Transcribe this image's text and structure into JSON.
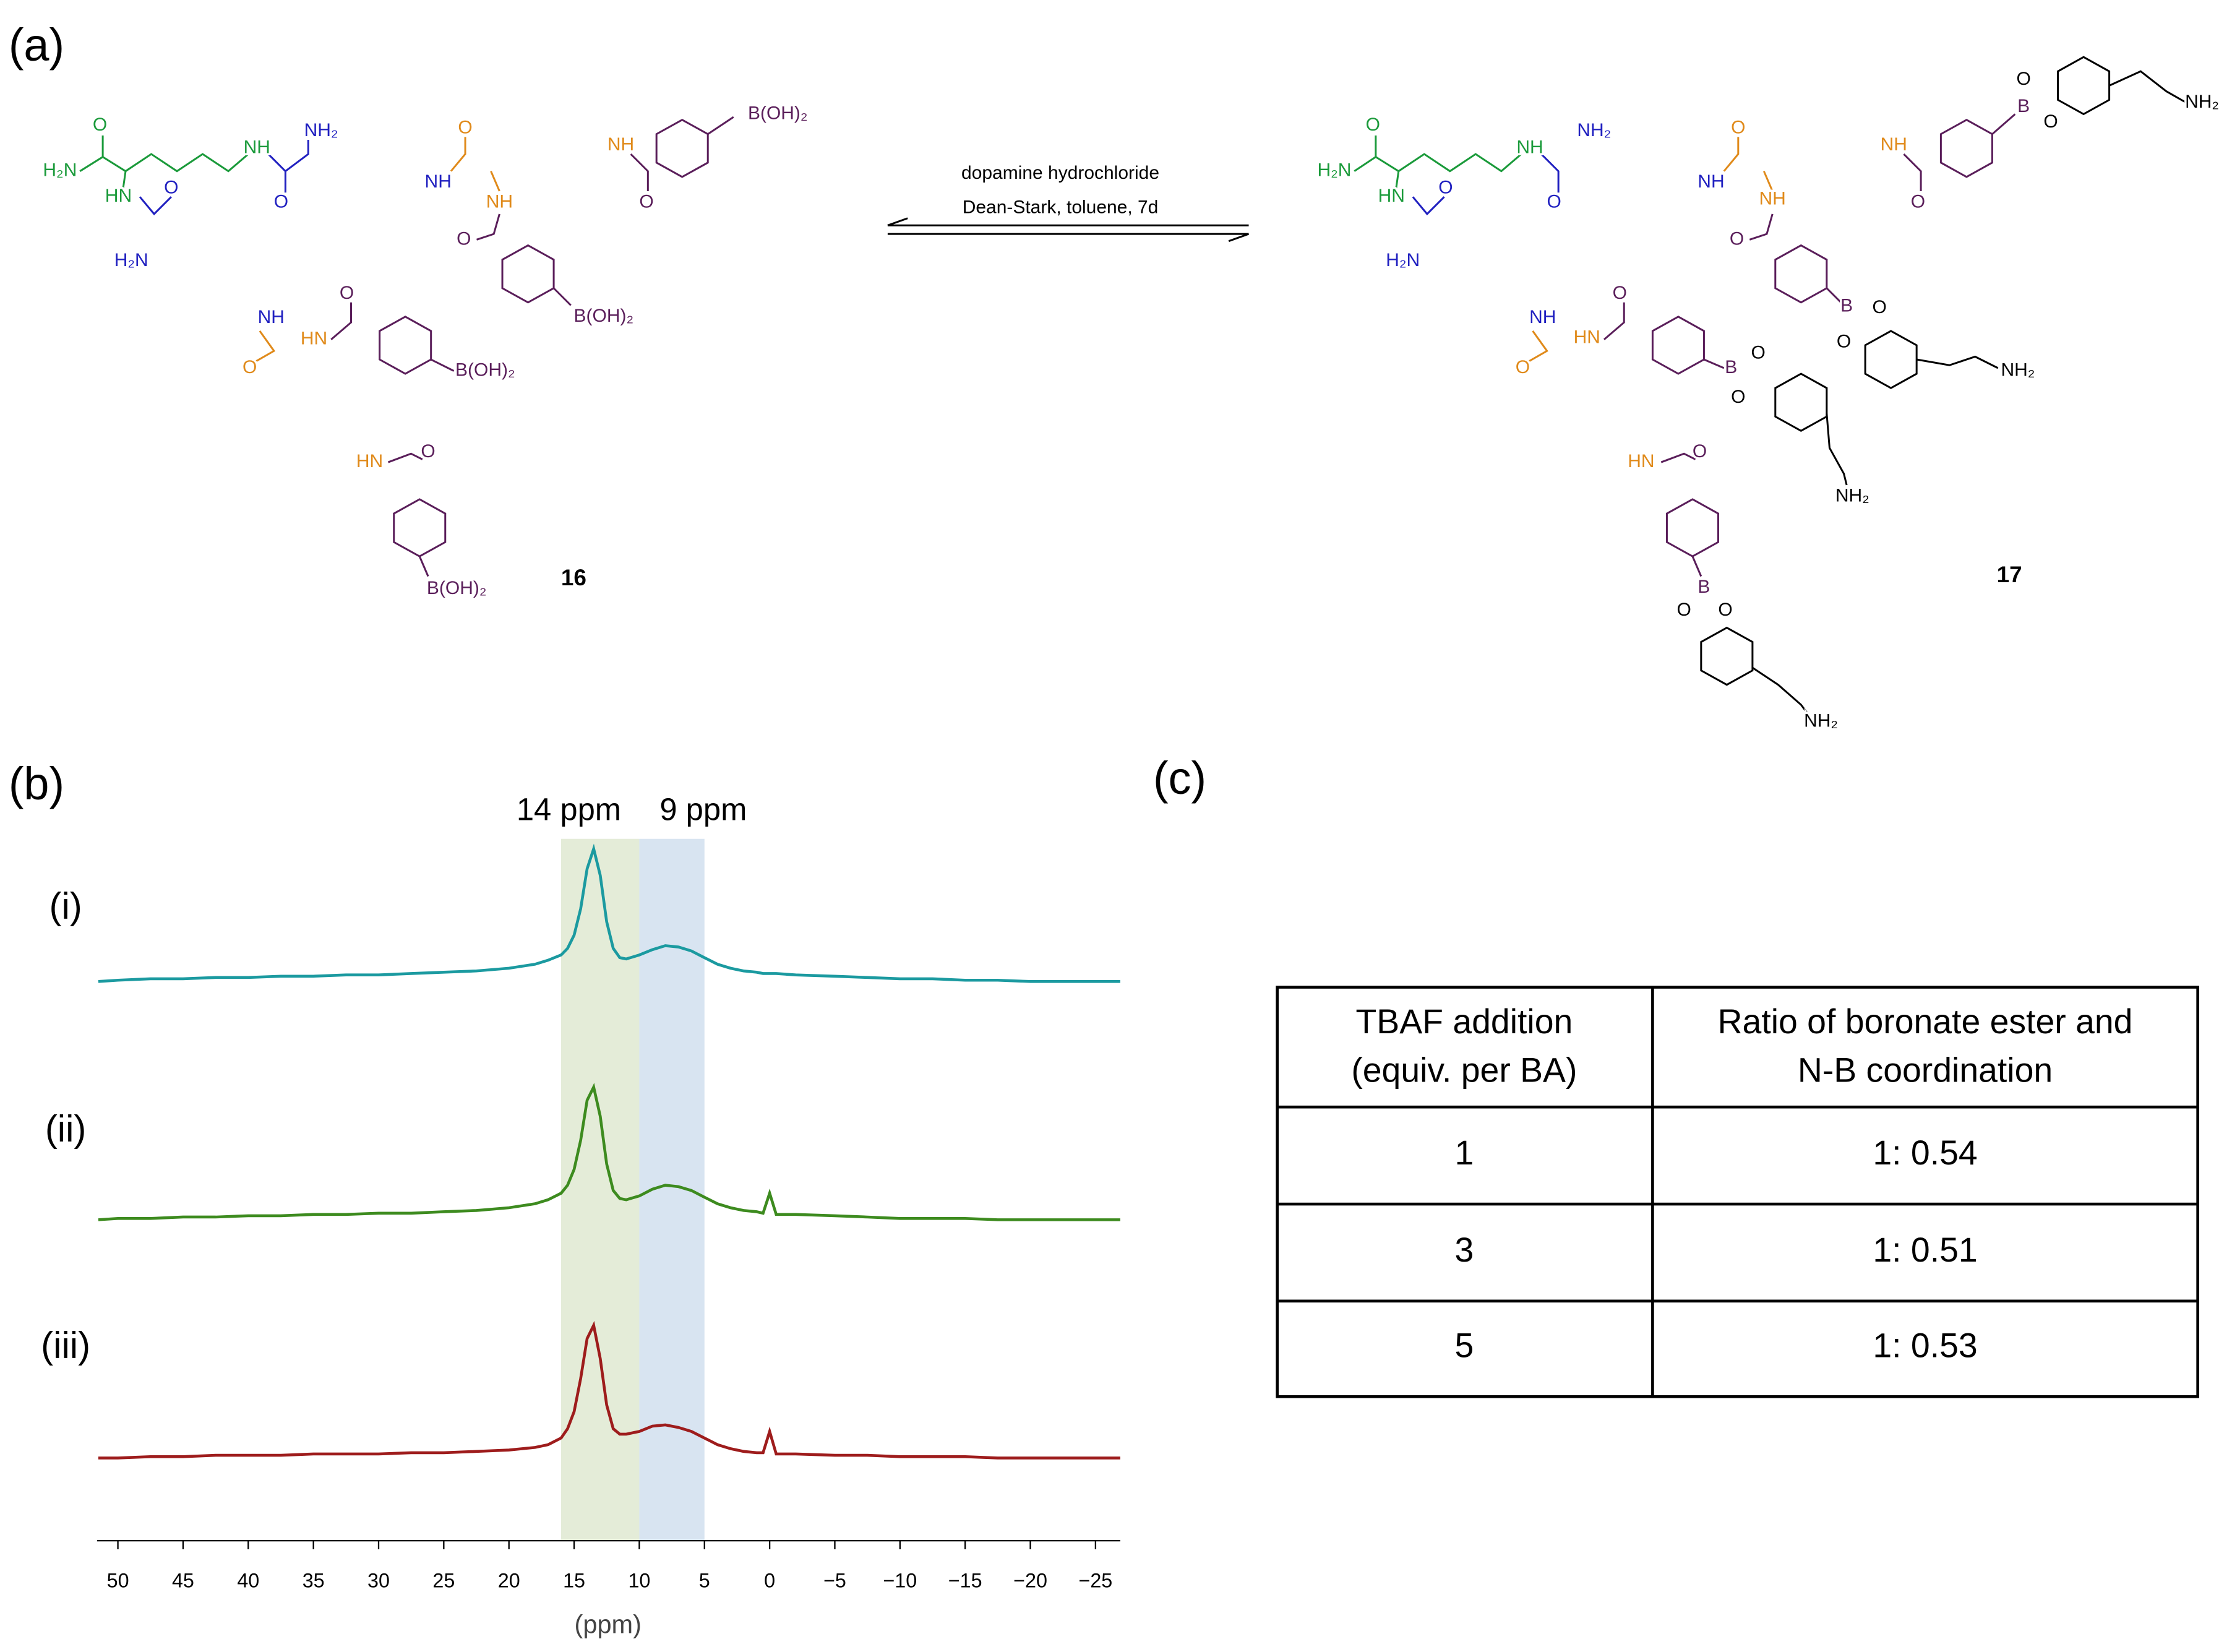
{
  "panels": {
    "a": "(a)",
    "b": "(b)",
    "c": "(c)"
  },
  "reaction": {
    "reagents": [
      "dopamine hydrochloride",
      "Dean-Stark, toluene, 7d"
    ],
    "compounds": [
      {
        "number": "16",
        "atoms": [
          "H₂N",
          "O",
          "HN",
          "NH",
          "NH₂",
          "O",
          "O",
          "H₂N",
          "NH",
          "NH",
          "O",
          "O",
          "HN",
          "NH",
          "NH",
          "HN",
          "O",
          "B(OH)₂",
          "O",
          "B(OH)₂",
          "O",
          "B(OH)₂",
          "O",
          "B(OH)₂"
        ]
      },
      {
        "number": "17",
        "atoms": [
          "H₂N",
          "O",
          "HN",
          "NH",
          "NH₂",
          "O",
          "O",
          "H₂N",
          "NH",
          "NH",
          "O",
          "O",
          "HN",
          "NH",
          "NH",
          "HN",
          "O",
          "B",
          "O",
          "O",
          "NH₂",
          "O",
          "B",
          "O",
          "O",
          "NH₂",
          "O",
          "B",
          "O",
          "O",
          "NH₂",
          "O",
          "B",
          "O",
          "O",
          "NH₂"
        ]
      }
    ]
  },
  "chart_data": {
    "type": "line",
    "xlabel": "(ppm)",
    "x": [
      51.5,
      50,
      47.5,
      45,
      42.5,
      40,
      37.5,
      35,
      32.5,
      30,
      27.5,
      25,
      22.5,
      20,
      18,
      17,
      16,
      15.5,
      15,
      14.5,
      14,
      13.5,
      13,
      12.5,
      12,
      11.5,
      11,
      10,
      9,
      8,
      7,
      6,
      5,
      4,
      3,
      2,
      1,
      0.5,
      0,
      -0.5,
      -2,
      -5,
      -7.5,
      -10,
      -12.5,
      -15,
      -17.5,
      -20,
      -22.5,
      -25,
      -26.9
    ],
    "series": [
      {
        "name": "(i)",
        "color": "#1b9aa0",
        "values": [
          0,
          0.01,
          0.02,
          0.02,
          0.03,
          0.03,
          0.04,
          0.04,
          0.05,
          0.05,
          0.06,
          0.07,
          0.08,
          0.1,
          0.13,
          0.16,
          0.2,
          0.25,
          0.35,
          0.55,
          0.85,
          1.0,
          0.8,
          0.45,
          0.25,
          0.18,
          0.17,
          0.2,
          0.24,
          0.27,
          0.26,
          0.23,
          0.18,
          0.13,
          0.1,
          0.08,
          0.07,
          0.06,
          0.06,
          0.06,
          0.05,
          0.04,
          0.03,
          0.02,
          0.02,
          0.01,
          0.01,
          0,
          0,
          0,
          0
        ]
      },
      {
        "name": "(ii)",
        "color": "#3d8b1f",
        "values": [
          0,
          0.01,
          0.01,
          0.02,
          0.02,
          0.03,
          0.03,
          0.04,
          0.04,
          0.05,
          0.05,
          0.06,
          0.07,
          0.09,
          0.12,
          0.15,
          0.2,
          0.26,
          0.38,
          0.6,
          0.9,
          1.0,
          0.78,
          0.42,
          0.22,
          0.16,
          0.15,
          0.18,
          0.23,
          0.26,
          0.25,
          0.22,
          0.17,
          0.12,
          0.09,
          0.07,
          0.06,
          0.05,
          0.2,
          0.04,
          0.04,
          0.03,
          0.02,
          0.01,
          0.01,
          0.01,
          0,
          0,
          0,
          0,
          0
        ]
      },
      {
        "name": "(iii)",
        "color": "#9e1c1c",
        "values": [
          0,
          0,
          0.01,
          0.01,
          0.02,
          0.02,
          0.02,
          0.03,
          0.03,
          0.03,
          0.04,
          0.04,
          0.05,
          0.06,
          0.08,
          0.1,
          0.15,
          0.22,
          0.35,
          0.6,
          0.9,
          1.0,
          0.75,
          0.4,
          0.22,
          0.18,
          0.18,
          0.2,
          0.24,
          0.25,
          0.23,
          0.2,
          0.15,
          0.1,
          0.07,
          0.05,
          0.04,
          0.04,
          0.2,
          0.03,
          0.03,
          0.02,
          0.02,
          0.01,
          0.01,
          0.01,
          0,
          0,
          0,
          0,
          0
        ]
      }
    ],
    "xlim": [
      51.6,
      -26.9
    ],
    "xticks": [
      50,
      45,
      40,
      35,
      30,
      25,
      20,
      15,
      10,
      5,
      0,
      {
        "value": -5,
        "label": "−5"
      },
      {
        "value": -10,
        "label": "−10"
      },
      {
        "value": -15,
        "label": "−15"
      },
      {
        "value": -20,
        "label": "−20"
      },
      {
        "value": -25,
        "label": "−25"
      }
    ],
    "regions": [
      {
        "label": "14 ppm",
        "from": 16,
        "to": 10,
        "color": "#e4ecd8"
      },
      {
        "label": "9 ppm",
        "from": 10,
        "to": 5,
        "color": "#d8e4f1"
      }
    ]
  },
  "table": {
    "header": [
      [
        "TBAF addition",
        "(equiv. per BA)"
      ],
      [
        "Ratio of boronate ester and",
        "N-B coordination"
      ]
    ],
    "rows": [
      [
        "1",
        "1: 0.54"
      ],
      [
        "3",
        "1: 0.51"
      ],
      [
        "5",
        "1: 0.53"
      ]
    ]
  }
}
